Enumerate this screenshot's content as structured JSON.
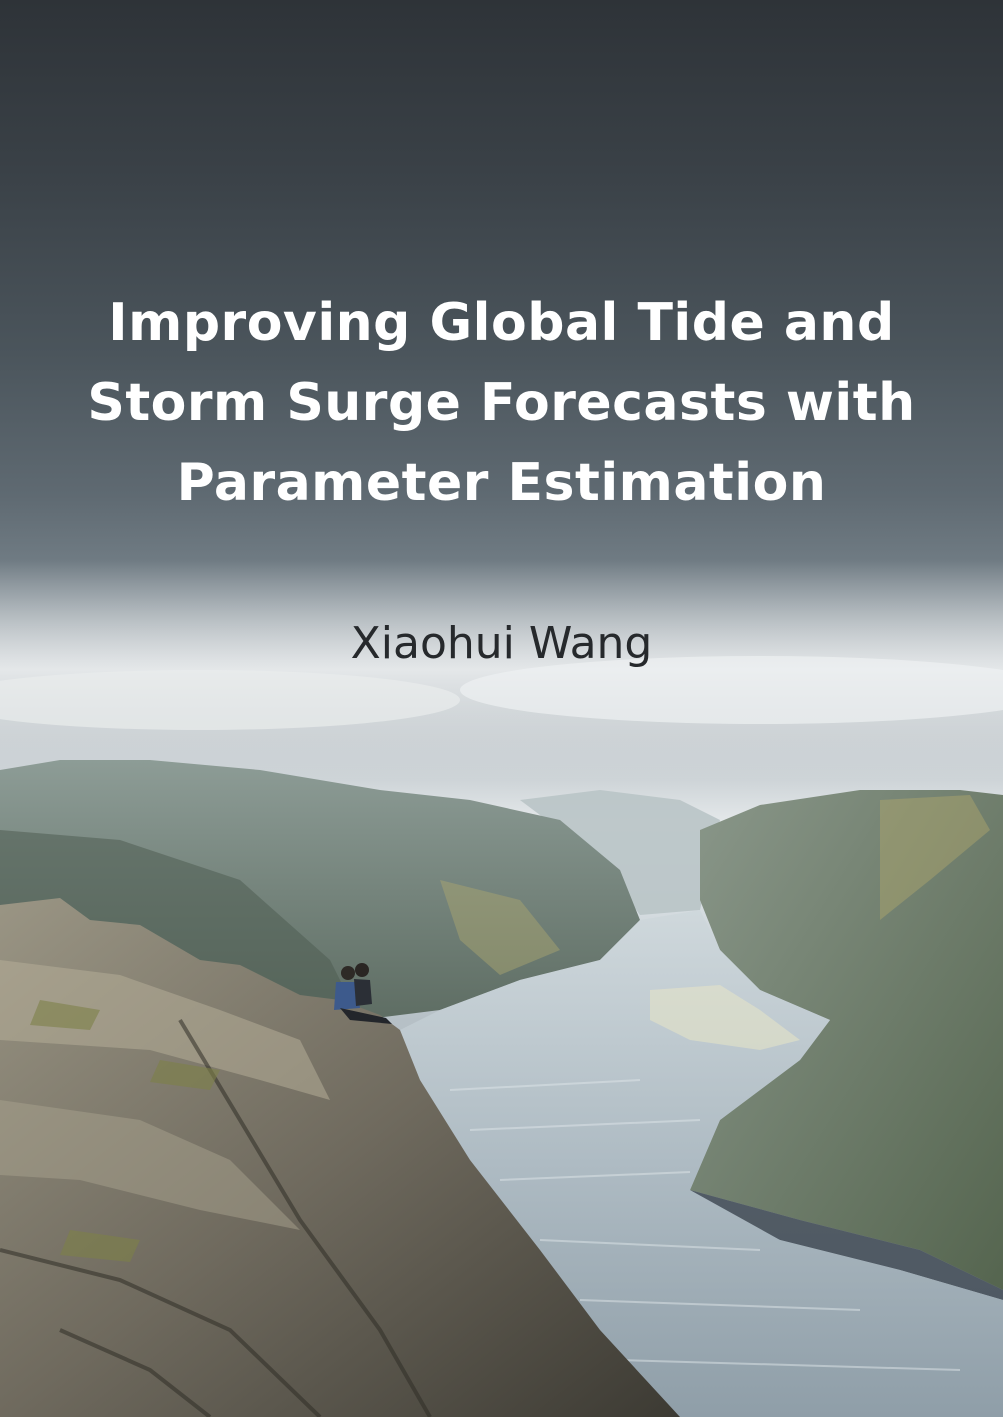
{
  "cover": {
    "title_lines": [
      "Improving Global Tide and",
      "Storm Surge Forecasts with",
      "Parameter Estimation"
    ],
    "author": "Xiaohui Wang"
  },
  "colors": {
    "sky_top": "#2e3338",
    "sky_band": "#e4e8ea",
    "title_text": "#ffffff",
    "author_text": "#26292c",
    "water": "#b9c5cc",
    "cliff": "#6f6a5e"
  }
}
